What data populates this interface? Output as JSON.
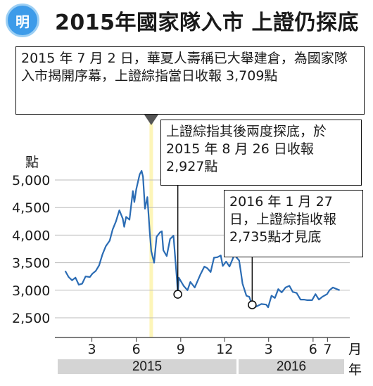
{
  "logo_text": "明",
  "title": "2015年國家隊入市 上證仍探底",
  "callouts": [
    "2015 年 7 月 2 日，華夏人壽稱已大舉建倉，為國家隊入市揭開序幕，上證綜指當日收報 3,709點",
    "上證綜指其後兩度探底，於 2015 年 8 月 26 日收報 2,927點",
    "2016 年 1 月 27 日，上證綜指收報2,735點才見底"
  ],
  "colors": {
    "line": "#2b6cb4",
    "highlight": "#fdf5b8",
    "logo": "#3d9be9",
    "year_band": "#d4d4d4"
  },
  "chart_data": {
    "type": "line",
    "ylabel": "點",
    "xlabel": "月",
    "xlabel_year": "年",
    "ylim": [
      2400,
      5200
    ],
    "yticks": [
      2500,
      3000,
      3500,
      4000,
      4500,
      5000
    ],
    "ytick_labels": [
      "2,500",
      "3,000",
      "3,500",
      "4,000",
      "4,500",
      "5,000"
    ],
    "xtick_labels": [
      "3",
      "6",
      "9",
      "12",
      "3",
      "6",
      "7"
    ],
    "xtick_dates": [
      "2015-03-01",
      "2015-06-01",
      "2015-09-01",
      "2015-12-01",
      "2016-03-01",
      "2016-06-01",
      "2016-07-01"
    ],
    "years": [
      {
        "label": "2015"
      },
      {
        "label": "2016"
      }
    ],
    "highlight_date": "2015-07-02",
    "markers": [
      {
        "date": "2015-08-26",
        "value": 2927
      },
      {
        "date": "2016-01-27",
        "value": 2735
      }
    ],
    "series": [
      {
        "values": [
          [
            "2015-01-05",
            3350
          ],
          [
            "2015-01-12",
            3240
          ],
          [
            "2015-01-19",
            3180
          ],
          [
            "2015-01-26",
            3230
          ],
          [
            "2015-02-02",
            3100
          ],
          [
            "2015-02-09",
            3120
          ],
          [
            "2015-02-16",
            3250
          ],
          [
            "2015-02-25",
            3240
          ],
          [
            "2015-03-02",
            3300
          ],
          [
            "2015-03-09",
            3350
          ],
          [
            "2015-03-16",
            3450
          ],
          [
            "2015-03-23",
            3650
          ],
          [
            "2015-03-30",
            3800
          ],
          [
            "2015-04-07",
            3900
          ],
          [
            "2015-04-13",
            4100
          ],
          [
            "2015-04-20",
            4250
          ],
          [
            "2015-04-27",
            4450
          ],
          [
            "2015-05-04",
            4300
          ],
          [
            "2015-05-07",
            4150
          ],
          [
            "2015-05-11",
            4330
          ],
          [
            "2015-05-18",
            4280
          ],
          [
            "2015-05-25",
            4800
          ],
          [
            "2015-05-28",
            4600
          ],
          [
            "2015-06-01",
            4830
          ],
          [
            "2015-06-08",
            5100
          ],
          [
            "2015-06-12",
            5166
          ],
          [
            "2015-06-15",
            5060
          ],
          [
            "2015-06-19",
            4480
          ],
          [
            "2015-06-24",
            4690
          ],
          [
            "2015-06-29",
            4050
          ],
          [
            "2015-07-02",
            3709
          ],
          [
            "2015-07-08",
            3500
          ],
          [
            "2015-07-13",
            3970
          ],
          [
            "2015-07-20",
            4050
          ],
          [
            "2015-07-24",
            4070
          ],
          [
            "2015-07-27",
            3725
          ],
          [
            "2015-08-03",
            3620
          ],
          [
            "2015-08-10",
            3930
          ],
          [
            "2015-08-17",
            3990
          ],
          [
            "2015-08-20",
            3660
          ],
          [
            "2015-08-24",
            3210
          ],
          [
            "2015-08-26",
            2927
          ],
          [
            "2015-08-28",
            3230
          ],
          [
            "2015-09-07",
            3080
          ],
          [
            "2015-09-15",
            3000
          ],
          [
            "2015-09-21",
            3150
          ],
          [
            "2015-09-30",
            3050
          ],
          [
            "2015-10-12",
            3290
          ],
          [
            "2015-10-20",
            3430
          ],
          [
            "2015-10-26",
            3400
          ],
          [
            "2015-11-02",
            3330
          ],
          [
            "2015-11-09",
            3590
          ],
          [
            "2015-11-16",
            3600
          ],
          [
            "2015-11-23",
            3630
          ],
          [
            "2015-11-27",
            3440
          ],
          [
            "2015-12-04",
            3520
          ],
          [
            "2015-12-11",
            3430
          ],
          [
            "2015-12-21",
            3640
          ],
          [
            "2015-12-31",
            3540
          ],
          [
            "2016-01-04",
            3300
          ],
          [
            "2016-01-07",
            3120
          ],
          [
            "2016-01-15",
            2900
          ],
          [
            "2016-01-21",
            2880
          ],
          [
            "2016-01-27",
            2735
          ],
          [
            "2016-02-01",
            2690
          ],
          [
            "2016-02-15",
            2750
          ],
          [
            "2016-02-25",
            2740
          ],
          [
            "2016-02-29",
            2690
          ],
          [
            "2016-03-07",
            2900
          ],
          [
            "2016-03-14",
            2860
          ],
          [
            "2016-03-21",
            3020
          ],
          [
            "2016-03-28",
            2960
          ],
          [
            "2016-04-05",
            3050
          ],
          [
            "2016-04-13",
            3080
          ],
          [
            "2016-04-20",
            2970
          ],
          [
            "2016-04-28",
            2950
          ],
          [
            "2016-05-06",
            2830
          ],
          [
            "2016-05-13",
            2830
          ],
          [
            "2016-05-20",
            2820
          ],
          [
            "2016-05-30",
            2820
          ],
          [
            "2016-06-06",
            2930
          ],
          [
            "2016-06-13",
            2830
          ],
          [
            "2016-06-20",
            2880
          ],
          [
            "2016-06-30",
            2930
          ],
          [
            "2016-07-05",
            3000
          ],
          [
            "2016-07-12",
            3050
          ],
          [
            "2016-07-20",
            3020
          ],
          [
            "2016-07-26",
            3000
          ]
        ]
      }
    ]
  }
}
